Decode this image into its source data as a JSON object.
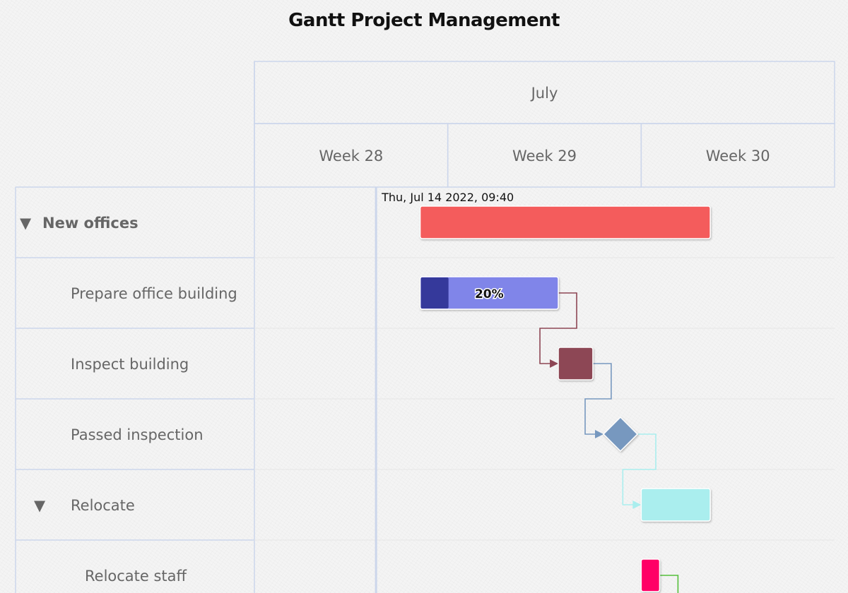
{
  "chart_data": {
    "type": "gantt",
    "title": "Gantt Project Management",
    "month_label": "July",
    "weeks": [
      {
        "label": "Week 28",
        "start": "2022-07-10",
        "end": "2022-07-17"
      },
      {
        "label": "Week 29",
        "start": "2022-07-17",
        "end": "2022-07-24"
      },
      {
        "label": "Week 30",
        "start": "2022-07-24",
        "end": "2022-07-31"
      }
    ],
    "current_date": "2022-07-14T09:40",
    "current_date_label": "Thu, Jul 14 2022, 09:40",
    "tasks": [
      {
        "id": "new_offices",
        "name": "New offices",
        "level": 0,
        "group": true,
        "collapse_icon": "▼",
        "start": "2022-07-16",
        "end": "2022-07-26T12:00",
        "color": "#f45b5b"
      },
      {
        "id": "prepare_building",
        "name": "Prepare office building",
        "level": 1,
        "group": false,
        "start": "2022-07-16",
        "end": "2022-07-21",
        "color": "#8085e9",
        "completed": 0.2,
        "completed_color": "#35399b",
        "completed_label": "20%"
      },
      {
        "id": "inspect",
        "name": "Inspect building",
        "level": 1,
        "group": false,
        "start": "2022-07-21",
        "end": "2022-07-22T06:00",
        "color": "#8d4654",
        "dependency": "prepare_building"
      },
      {
        "id": "passed",
        "name": "Passed inspection",
        "level": 1,
        "group": false,
        "milestone": true,
        "start": "2022-07-23T06:00",
        "color": "#7798bf",
        "dependency": "inspect"
      },
      {
        "id": "relocate",
        "name": "Relocate",
        "level": 1,
        "group": true,
        "collapse_icon": "▼",
        "start": "2022-07-24",
        "end": "2022-07-26T12:00",
        "color": "#aaeeee",
        "dependency": "passed"
      },
      {
        "id": "relocate_staff",
        "name": "Relocate staff",
        "level": 2,
        "group": false,
        "start": "2022-07-24",
        "end": "2022-07-24T16:00",
        "color": "#ff0066"
      }
    ],
    "dependency_colors": {
      "inspect": "#8d4654",
      "passed": "#7798bf",
      "relocate": "#aaeeee",
      "after_relocate_staff": "#55bf3b"
    },
    "grid_color": "#ccd6eb"
  }
}
